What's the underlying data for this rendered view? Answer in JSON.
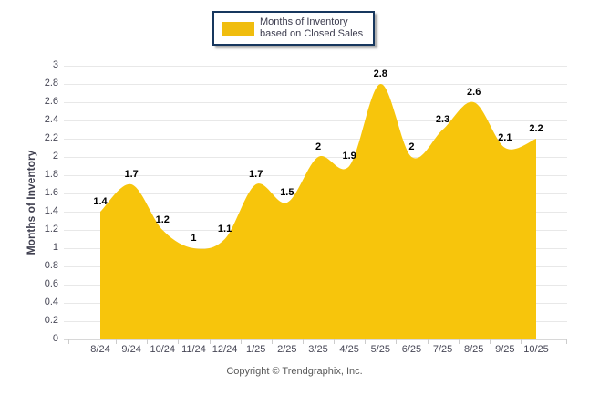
{
  "legend": {
    "label": "Months of Inventory based on Closed Sales",
    "swatch_color": "#F0BD0E"
  },
  "footer": {
    "copyright": "Copyright © Trendgraphix, Inc."
  },
  "colors": {
    "area_fill": "#F7C50C",
    "legend_border": "#17375E",
    "grid_line": "#E8E8E8",
    "baseline": "#D8D8D8",
    "tick_mark": "#CCCCCC"
  },
  "chart_data": {
    "type": "area",
    "title": "",
    "xlabel": "",
    "ylabel": "Months of Inventory",
    "categories": [
      "8/24",
      "9/24",
      "10/24",
      "11/24",
      "12/24",
      "1/25",
      "2/25",
      "3/25",
      "4/25",
      "5/25",
      "6/25",
      "7/25",
      "8/25",
      "9/25",
      "10/25"
    ],
    "values": [
      1.4,
      1.7,
      1.2,
      1,
      1.1,
      1.7,
      1.5,
      2,
      1.9,
      2.8,
      2,
      2.3,
      2.6,
      2.1,
      2.2
    ],
    "point_labels": [
      "1.4",
      "1.7",
      "1.2",
      "1",
      "1.1",
      "1.7",
      "1.5",
      "2",
      "1.9",
      "2.8",
      "2",
      "2.3",
      "2.6",
      "2.1",
      "2.2"
    ],
    "ylim": [
      0,
      3
    ],
    "ytick_step": 0.2,
    "grid": true,
    "smooth": true,
    "legend_position": "top"
  }
}
